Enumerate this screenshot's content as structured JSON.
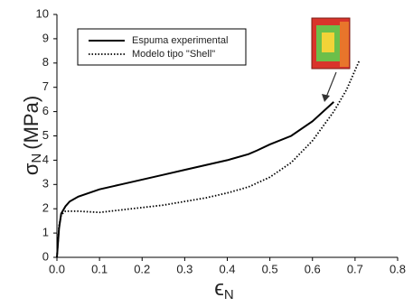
{
  "chart_data": {
    "type": "line",
    "y_label": "σ",
    "y_label_sub": "N",
    "y_label_unit": "(MPa)",
    "x_label": "ϵ",
    "x_label_sub": "N",
    "xlim": [
      0,
      0.8
    ],
    "xticks": [
      {
        "value": 0,
        "label": "0.0"
      },
      0.1,
      0.2,
      0.3,
      0.4,
      0.5,
      0.6,
      0.7,
      0.8
    ],
    "ylim": [
      0,
      10
    ],
    "yticks": [
      0,
      1,
      2,
      3,
      4,
      5,
      6,
      7,
      8,
      9,
      10
    ],
    "legend": "upper left",
    "series": [
      {
        "name": "Espuma experimental",
        "color": "#000000",
        "style": "solid",
        "x": [
          0,
          0.005,
          0.01,
          0.02,
          0.03,
          0.05,
          0.1,
          0.15,
          0.2,
          0.25,
          0.3,
          0.35,
          0.4,
          0.45,
          0.47,
          0.5,
          0.55,
          0.6,
          0.65
        ],
        "values": [
          0,
          1.2,
          1.8,
          2.1,
          2.3,
          2.5,
          2.8,
          3.0,
          3.2,
          3.4,
          3.6,
          3.8,
          4.0,
          4.25,
          4.4,
          4.65,
          5.0,
          5.6,
          6.4
        ]
      },
      {
        "name": "Modelo tipo \"Shell\"",
        "color": "#000000",
        "style": "dotted",
        "x": [
          0,
          0.005,
          0.01,
          0.02,
          0.05,
          0.1,
          0.15,
          0.2,
          0.25,
          0.3,
          0.35,
          0.4,
          0.45,
          0.5,
          0.55,
          0.6,
          0.65,
          0.68,
          0.71
        ],
        "values": [
          0,
          1.3,
          1.75,
          1.9,
          1.9,
          1.85,
          1.95,
          2.05,
          2.15,
          2.3,
          2.45,
          2.65,
          2.9,
          3.3,
          3.9,
          4.8,
          6.0,
          6.9,
          8.1
        ]
      }
    ]
  }
}
